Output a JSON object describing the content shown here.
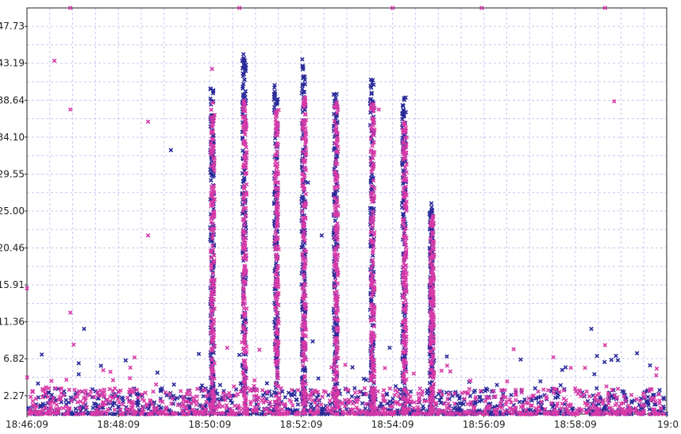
{
  "chart_data": {
    "type": "scatter",
    "title": "",
    "xlabel": "",
    "ylabel": "",
    "xlim": [
      "18:46:09",
      "19:00:09"
    ],
    "ylim": [
      0,
      50
    ],
    "grid": true,
    "legend": "none",
    "y_ticks": [
      "2.27",
      "6.82",
      "11.36",
      "15.91",
      "20.46",
      "25.00",
      "29.55",
      "34.10",
      "38.64",
      "43.19",
      "47.73"
    ],
    "x_ticks": [
      "18:46:09",
      "18:48:09",
      "18:50:09",
      "18:52:09",
      "18:54:09",
      "18:56:09",
      "18:58:09",
      "19:0"
    ],
    "colors": {
      "series_a": "#2a2a9a",
      "series_b": "#d63aa8",
      "grid": "#c8c8f0",
      "axis": "#222222"
    },
    "series": [
      {
        "color": "#2a2a9a",
        "bursts": [
          {
            "t": "18:50:12",
            "ymax": 40.5
          },
          {
            "t": "18:50:54",
            "ymax": 44.5
          },
          {
            "t": "18:51:36",
            "ymax": 40.5
          },
          {
            "t": "18:52:12",
            "ymax": 43.8
          },
          {
            "t": "18:52:54",
            "ymax": 39.5
          },
          {
            "t": "18:53:42",
            "ymax": 41.5
          },
          {
            "t": "18:54:24",
            "ymax": 39.0
          },
          {
            "t": "18:55:00",
            "ymax": 26.0
          }
        ],
        "outliers": [
          {
            "t": "18:49:18",
            "y": 32.5
          },
          {
            "t": "18:52:18",
            "y": 28.5
          },
          {
            "t": "18:52:36",
            "y": 22.0
          },
          {
            "t": "18:47:24",
            "y": 10.5
          },
          {
            "t": "18:58:30",
            "y": 10.5
          },
          {
            "t": "18:59:30",
            "y": 7.5
          }
        ]
      },
      {
        "color": "#d63aa8",
        "bursts": [
          {
            "t": "18:50:13",
            "ymax": 38.5
          },
          {
            "t": "18:50:55",
            "ymax": 39.0
          },
          {
            "t": "18:51:37",
            "ymax": 37.5
          },
          {
            "t": "18:52:13",
            "ymax": 39.0
          },
          {
            "t": "18:52:55",
            "ymax": 38.5
          },
          {
            "t": "18:53:43",
            "ymax": 38.5
          },
          {
            "t": "18:54:25",
            "ymax": 36.0
          },
          {
            "t": "18:55:01",
            "ymax": 24.5
          }
        ],
        "outliers": [
          {
            "t": "18:46:45",
            "y": 43.5
          },
          {
            "t": "18:47:06",
            "y": 50.0
          },
          {
            "t": "18:47:06",
            "y": 37.5
          },
          {
            "t": "18:47:06",
            "y": 12.5
          },
          {
            "t": "18:48:48",
            "y": 36.0
          },
          {
            "t": "18:48:48",
            "y": 22.0
          },
          {
            "t": "18:46:09",
            "y": 15.5
          },
          {
            "t": "18:50:12",
            "y": 42.5
          },
          {
            "t": "18:50:48",
            "y": 50.0
          },
          {
            "t": "18:53:51",
            "y": 37.5
          },
          {
            "t": "18:54:09",
            "y": 50.0
          },
          {
            "t": "18:56:06",
            "y": 50.0
          },
          {
            "t": "18:58:48",
            "y": 50.0
          },
          {
            "t": "18:59:00",
            "y": 38.5
          },
          {
            "t": "18:58:48",
            "y": 8.5
          },
          {
            "t": "18:56:48",
            "y": 8.0
          }
        ]
      }
    ]
  }
}
